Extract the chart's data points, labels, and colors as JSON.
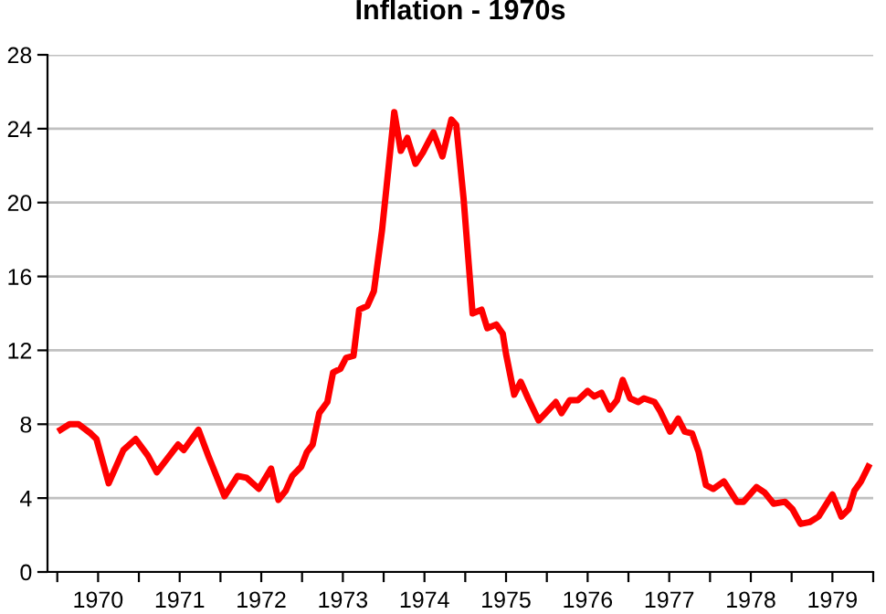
{
  "chart_data": {
    "type": "line",
    "title": "Inflation - 1970s",
    "x": [
      1970.04,
      1970.15,
      1970.26,
      1970.41,
      1970.48,
      1970.63,
      1970.81,
      1970.96,
      1971.11,
      1971.22,
      1971.48,
      1971.55,
      1971.73,
      1971.85,
      1972.05,
      1972.21,
      1972.32,
      1972.47,
      1972.62,
      1972.71,
      1972.8,
      1972.88,
      1972.99,
      1973.06,
      1973.13,
      1973.21,
      1973.31,
      1973.38,
      1973.47,
      1973.54,
      1973.63,
      1973.7,
      1973.8,
      1973.88,
      1973.98,
      1974.06,
      1974.13,
      1974.21,
      1974.29,
      1974.39,
      1974.48,
      1974.61,
      1974.72,
      1974.83,
      1974.89,
      1974.98,
      1975.09,
      1975.2,
      1975.27,
      1975.38,
      1975.46,
      1975.5,
      1975.6,
      1975.68,
      1975.77,
      1975.9,
      1976.11,
      1976.18,
      1976.28,
      1976.38,
      1976.5,
      1976.58,
      1976.67,
      1976.77,
      1976.86,
      1976.93,
      1977.02,
      1977.12,
      1977.19,
      1977.32,
      1977.39,
      1977.51,
      1977.61,
      1977.69,
      1977.78,
      1977.86,
      1977.95,
      1978.04,
      1978.17,
      1978.33,
      1978.41,
      1978.57,
      1978.67,
      1978.78,
      1978.92,
      1979.01,
      1979.11,
      1979.22,
      1979.33,
      1979.5,
      1979.61,
      1979.7,
      1979.77,
      1979.85,
      1979.94
    ],
    "series": [
      {
        "color": "#ff0000",
        "values": [
          7.7,
          8.0,
          8.0,
          7.5,
          7.2,
          4.8,
          6.6,
          7.2,
          6.3,
          5.4,
          6.9,
          6.6,
          7.7,
          6.3,
          4.1,
          5.2,
          5.1,
          4.5,
          5.6,
          3.9,
          4.4,
          5.2,
          5.7,
          6.5,
          6.9,
          8.6,
          9.2,
          10.8,
          11.0,
          11.6,
          11.7,
          14.2,
          14.4,
          15.2,
          18.5,
          21.9,
          24.9,
          22.8,
          23.5,
          22.1,
          22.7,
          23.8,
          22.5,
          24.5,
          24.2,
          20.2,
          14.0,
          14.2,
          13.2,
          13.4,
          12.9,
          11.8,
          9.6,
          10.3,
          9.4,
          8.2,
          9.2,
          8.6,
          9.3,
          9.3,
          9.8,
          9.5,
          9.7,
          8.8,
          9.3,
          10.4,
          9.4,
          9.2,
          9.4,
          9.2,
          8.7,
          7.6,
          8.3,
          7.6,
          7.5,
          6.5,
          4.7,
          4.5,
          4.9,
          3.8,
          3.8,
          4.6,
          4.3,
          3.7,
          3.8,
          3.4,
          2.6,
          2.7,
          3.0,
          4.2,
          3.0,
          3.4,
          4.4,
          4.9,
          5.7
        ]
      }
    ],
    "xlim": [
      1969.88,
      1980.0
    ],
    "xticks": [
      {
        "value": 1970,
        "label": null
      },
      {
        "value": 1970.5,
        "label": "1970"
      },
      {
        "value": 1971,
        "label": null
      },
      {
        "value": 1971.5,
        "label": "1971"
      },
      {
        "value": 1972,
        "label": null
      },
      {
        "value": 1972.5,
        "label": "1972"
      },
      {
        "value": 1973,
        "label": null
      },
      {
        "value": 1973.5,
        "label": "1973"
      },
      {
        "value": 1974,
        "label": null
      },
      {
        "value": 1974.5,
        "label": "1974"
      },
      {
        "value": 1975,
        "label": null
      },
      {
        "value": 1975.5,
        "label": "1975"
      },
      {
        "value": 1976,
        "label": null
      },
      {
        "value": 1976.5,
        "label": "1976"
      },
      {
        "value": 1977,
        "label": null
      },
      {
        "value": 1977.5,
        "label": "1977"
      },
      {
        "value": 1978,
        "label": null
      },
      {
        "value": 1978.5,
        "label": "1978"
      },
      {
        "value": 1979,
        "label": null
      },
      {
        "value": 1979.5,
        "label": "1979"
      },
      {
        "value": 1980,
        "label": null
      }
    ],
    "ylim": [
      0,
      28
    ],
    "yticks": [
      0,
      4,
      8,
      12,
      16,
      20,
      24,
      28
    ],
    "grid": "y",
    "line_style": "solid",
    "marker": "none"
  }
}
